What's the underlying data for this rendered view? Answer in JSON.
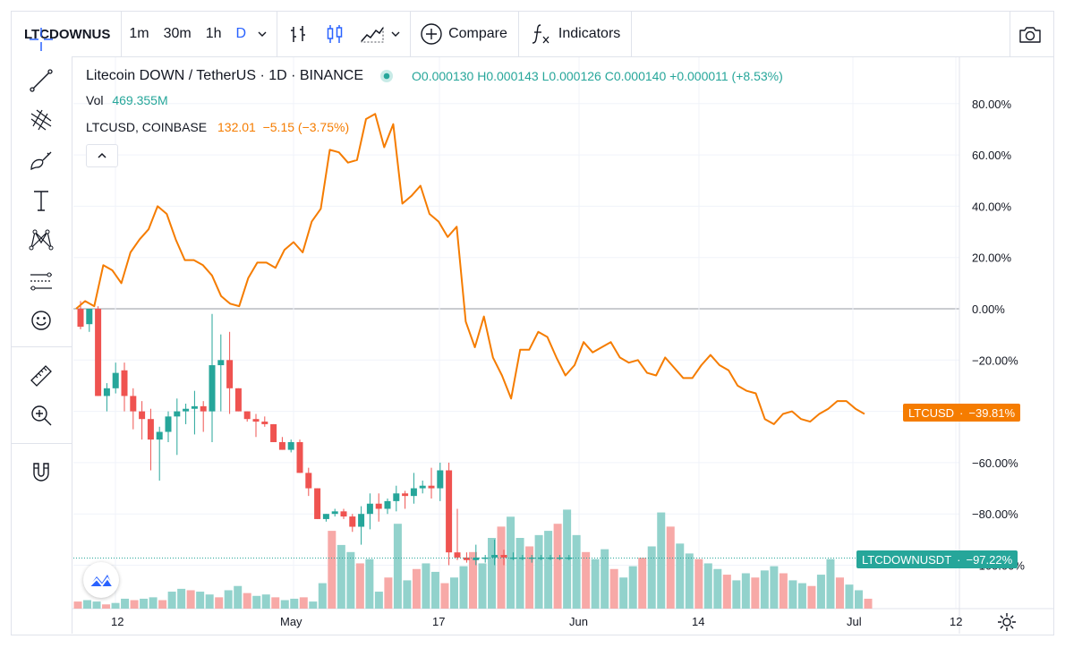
{
  "toolbar": {
    "symbol": "LTCDOWNUS",
    "timeframes": [
      "1m",
      "30m",
      "1h",
      "D"
    ],
    "active_timeframe": "D",
    "compare_label": "Compare",
    "indicators_label": "Indicators"
  },
  "legend": {
    "title": "Litecoin DOWN / TetherUS · 1D · BINANCE",
    "open_label": "O",
    "open": "0.000130",
    "high_label": "H",
    "high": "0.000143",
    "low_label": "L",
    "low": "0.000126",
    "close_label": "C",
    "close": "0.000140",
    "change": "+0.000011 (+8.53%)",
    "vol_label": "Vol",
    "vol_value": "469.355M",
    "compare_symbol": "LTCUSD, COINBASE",
    "compare_values": "132.01  −5.15 (−3.75%)"
  },
  "price_tags": {
    "ltcusd_label": "LTCUSD",
    "ltcusd_value": "−39.81%",
    "main_label": "LTCDOWNUSDT",
    "main_value": "−97.22%"
  },
  "colors": {
    "up": "#26a69a",
    "down": "#ef5350",
    "vol_up": "#92d2cc",
    "vol_down": "#f7a9a7",
    "compare_line": "#f57c00",
    "accent": "#2962ff"
  },
  "icons": [
    "crosshair-icon",
    "trend-line-icon",
    "fib-icon",
    "brush-icon",
    "text-icon",
    "pattern-icon",
    "prediction-icon",
    "emoji-icon",
    "ruler-icon",
    "zoom-icon",
    "magnet-icon",
    "camera-icon",
    "settings-icon",
    "plus-circle-icon",
    "fx-icon",
    "bar-type-icon",
    "candle-type-icon",
    "area-type-icon",
    "chevron-down-icon"
  ],
  "chart_data": {
    "type": "line",
    "y_axis_ticks": [
      "80.00%",
      "60.00%",
      "40.00%",
      "20.00%",
      "0.00%",
      "−20.00%",
      "−40.00%",
      "−60.00%",
      "−80.00%",
      "−100.00%"
    ],
    "x_axis_ticks": [
      "12",
      "May",
      "17",
      "Jun",
      "14",
      "Jul",
      "12"
    ],
    "ylim": [
      -110,
      85
    ],
    "series": [
      {
        "name": "LTCUSD",
        "kind": "line",
        "values": [
          0,
          3,
          1,
          17,
          15,
          10,
          22,
          27,
          31,
          40,
          37,
          27,
          19,
          19,
          17,
          13,
          5,
          2,
          1,
          12,
          18,
          18,
          16,
          23,
          26,
          22,
          34,
          39,
          62,
          61,
          57,
          58,
          74,
          76,
          63,
          72,
          41,
          44,
          48,
          37,
          34,
          28,
          32,
          -5,
          -15,
          -3,
          -19,
          -26,
          -35,
          -16,
          -16,
          -9,
          -11,
          -19,
          -26,
          -22,
          -13,
          -17,
          -15,
          -13,
          -19,
          -21,
          -20,
          -25,
          -26,
          -19,
          -23,
          -27,
          -27,
          -22,
          -18,
          -22,
          -24,
          -30,
          -32,
          -33,
          -43,
          -45,
          -41,
          -40,
          -43,
          -44,
          -41,
          -39,
          -36,
          -36,
          -39,
          -41
        ],
        "last": -39.81
      },
      {
        "name": "LTCDOWNUSDT",
        "kind": "candlestick",
        "ohlc_pct": [
          [
            0,
            3,
            -8,
            -7
          ],
          [
            -6,
            0,
            -9,
            0
          ],
          [
            0,
            1,
            -34,
            -34
          ],
          [
            -34,
            -29,
            -40,
            -31
          ],
          [
            -31,
            -21,
            -33,
            -25
          ],
          [
            -24,
            -21,
            -40,
            -34
          ],
          [
            -34,
            -31,
            -47,
            -40
          ],
          [
            -40,
            -36,
            -51,
            -43
          ],
          [
            -43,
            -39,
            -63,
            -51
          ],
          [
            -51,
            -46,
            -67,
            -48
          ],
          [
            -48,
            -40,
            -52,
            -42
          ],
          [
            -42,
            -35,
            -57,
            -40
          ],
          [
            -40,
            -37,
            -45,
            -39
          ],
          [
            -39,
            -32,
            -49,
            -38
          ],
          [
            -38,
            -36,
            -48,
            -40
          ],
          [
            -40,
            -2,
            -52,
            -22
          ],
          [
            -22,
            -10,
            -40,
            -20
          ],
          [
            -20,
            -9,
            -41,
            -31
          ],
          [
            -31,
            -40,
            -40,
            -40
          ],
          [
            -40,
            -42,
            -44,
            -43
          ],
          [
            -43,
            -41,
            -50,
            -44
          ],
          [
            -44,
            -42,
            -46,
            -45
          ],
          [
            -45,
            -47,
            -47,
            -52
          ],
          [
            -52,
            -50,
            -55,
            -55
          ],
          [
            -55,
            -51,
            -56,
            -52
          ],
          [
            -52,
            -51,
            -64,
            -64
          ],
          [
            -64,
            -62,
            -73,
            -70
          ],
          [
            -70,
            -77,
            -82,
            -82
          ],
          [
            -82,
            -80,
            -83,
            -80
          ],
          [
            -80,
            -78,
            -81,
            -79
          ],
          [
            -79,
            -78,
            -82,
            -81
          ],
          [
            -81,
            -80,
            -87,
            -85
          ],
          [
            -85,
            -77,
            -92,
            -80
          ],
          [
            -80,
            -72,
            -86,
            -76
          ],
          [
            -76,
            -72,
            -83,
            -78
          ],
          [
            -78,
            -74,
            -80,
            -75
          ],
          [
            -75,
            -69,
            -79,
            -72
          ],
          [
            -72,
            -71,
            -78,
            -73
          ],
          [
            -73,
            -64,
            -76,
            -70
          ],
          [
            -70,
            -67,
            -72,
            -69
          ],
          [
            -69,
            -62,
            -74,
            -70
          ],
          [
            -70,
            -60,
            -75,
            -63
          ],
          [
            -63,
            -60,
            -100,
            -95
          ],
          [
            -95,
            -78,
            -98,
            -97
          ],
          [
            -97,
            -95,
            -99,
            -98
          ],
          [
            -98,
            -92,
            -100,
            -97
          ],
          [
            -97,
            -96,
            -99,
            -97
          ],
          [
            -97,
            -90,
            -100,
            -96
          ],
          [
            -96,
            -94,
            -100,
            -97
          ],
          [
            -97,
            -95,
            -98,
            -97
          ],
          [
            -97,
            -96,
            -98,
            -97
          ],
          [
            -97,
            -96,
            -99,
            -97
          ],
          [
            -97,
            -96,
            -98,
            -97
          ],
          [
            -97,
            -96,
            -98,
            -97
          ],
          [
            -97,
            -96,
            -98,
            -97
          ],
          [
            -97,
            -96,
            -98,
            -97
          ]
        ],
        "last": -97.22
      }
    ],
    "volume_relative": [
      5,
      6,
      5,
      3,
      4,
      7,
      6,
      7,
      8,
      6,
      12,
      14,
      13,
      12,
      10,
      8,
      13,
      16,
      11,
      9,
      10,
      8,
      6,
      7,
      8,
      5,
      18,
      55,
      45,
      40,
      32,
      35,
      12,
      22,
      60,
      20,
      28,
      32,
      26,
      18,
      22,
      30,
      40,
      32,
      50,
      58,
      65,
      50,
      44,
      52,
      55,
      60,
      70,
      52,
      40,
      35,
      42,
      28,
      22,
      30,
      36,
      44,
      68,
      58,
      46,
      39,
      35,
      32,
      28,
      24,
      20,
      25,
      22,
      27,
      30,
      25,
      20,
      18,
      16,
      24,
      35,
      22,
      17,
      13,
      7
    ]
  }
}
